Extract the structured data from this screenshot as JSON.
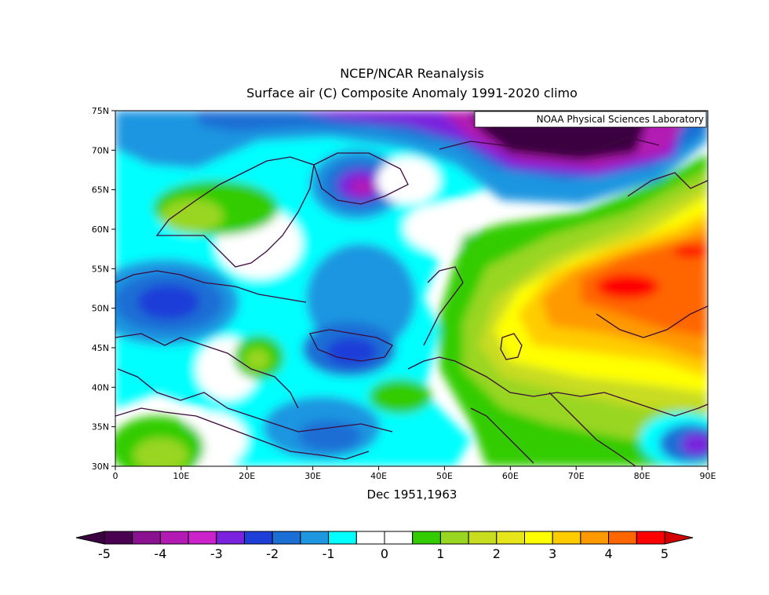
{
  "title": "NCEP/NCAR Reanalysis",
  "subtitle": "Surface air (C) Composite Anomaly 1991-2020 climo",
  "xlabel": "Dec 1951,1963",
  "credit": "NOAA Physical Sciences Laboratory",
  "lat_ticks": [
    "75N",
    "70N",
    "65N",
    "60N",
    "55N",
    "50N",
    "45N",
    "40N",
    "35N",
    "30N"
  ],
  "lon_ticks": [
    "0",
    "10E",
    "20E",
    "30E",
    "40E",
    "50E",
    "60E",
    "70E",
    "80E",
    "90E"
  ],
  "extent": {
    "lon": [
      0,
      90
    ],
    "lat": [
      30,
      75
    ]
  },
  "colorbar": {
    "labels": [
      "-5",
      "-4",
      "-3",
      "-2",
      "-1",
      "0",
      "1",
      "2",
      "3",
      "4",
      "5"
    ],
    "colors": [
      "#4a0050",
      "#8a1290",
      "#b31ab3",
      "#cc22cc",
      "#7a22dd",
      "#1e3ed8",
      "#1a6ed4",
      "#1e96e0",
      "#00ffff",
      "#ffffff",
      "#ffffff",
      "#33cc00",
      "#99d622",
      "#c8dc20",
      "#e6e61a",
      "#ffff00",
      "#ffcc00",
      "#ff9900",
      "#ff6600",
      "#ff0000"
    ],
    "low_color": "#3a003f",
    "high_color": "#d40000"
  }
}
